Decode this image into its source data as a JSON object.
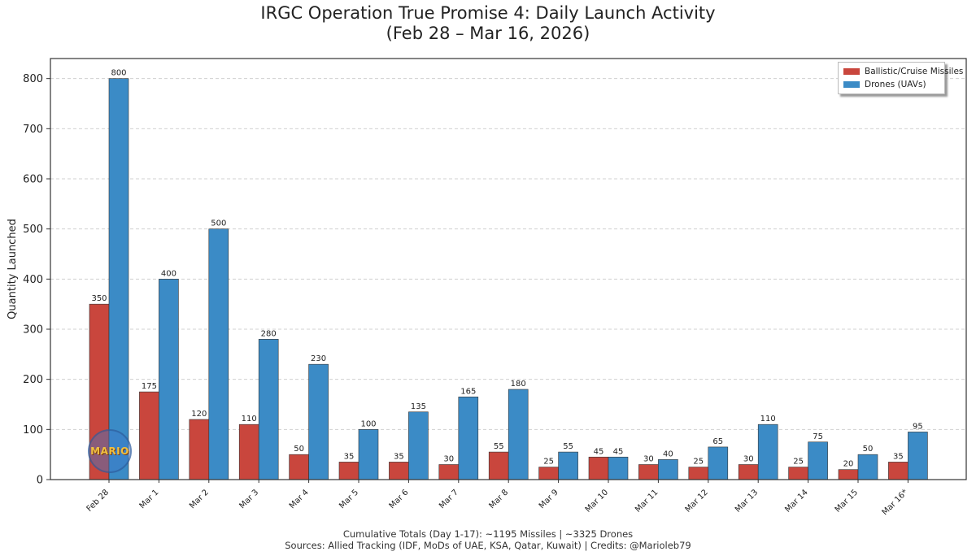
{
  "header": {
    "title_line1": "IRGC Operation True Promise 4: Daily Launch Activity",
    "title_line2": "(Feb 28 – Mar 16, 2026)"
  },
  "footer": {
    "line1": "Cumulative Totals (Day 1-17): ~1195 Missiles | ~3325 Drones",
    "line2": "Sources: Allied Tracking (IDF, MoDs of UAE, KSA, Qatar, Kuwait) | Credits: @Marioleb79"
  },
  "watermark": {
    "text": "MARIO"
  },
  "colors": {
    "missiles": "#c9463d",
    "drones": "#3b8bc6",
    "grid": "#d0d0d0",
    "axis": "#333333"
  },
  "chart_data": {
    "type": "bar",
    "title": "IRGC Operation True Promise 4: Daily Launch Activity (Feb 28 – Mar 16, 2026)",
    "xlabel": "",
    "ylabel": "Quantity Launched",
    "ylim": [
      0,
      840
    ],
    "yticks": [
      0,
      100,
      200,
      300,
      400,
      500,
      600,
      700,
      800
    ],
    "grid": "horizontal dashed",
    "legend_position": "top-right",
    "categories": [
      "Feb 28",
      "Mar 1",
      "Mar 2",
      "Mar 3",
      "Mar 4",
      "Mar 5",
      "Mar 6",
      "Mar 7",
      "Mar 8",
      "Mar 9",
      "Mar 10",
      "Mar 11",
      "Mar 12",
      "Mar 13",
      "Mar 14",
      "Mar 15",
      "Mar 16*"
    ],
    "series": [
      {
        "name": "Ballistic/Cruise Missiles",
        "color": "#c9463d",
        "values": [
          350,
          175,
          120,
          110,
          50,
          35,
          35,
          30,
          55,
          25,
          45,
          30,
          25,
          30,
          25,
          20,
          35
        ]
      },
      {
        "name": "Drones (UAVs)",
        "color": "#3b8bc6",
        "values": [
          800,
          400,
          500,
          280,
          230,
          100,
          135,
          165,
          180,
          55,
          45,
          40,
          65,
          110,
          75,
          50,
          95
        ]
      }
    ]
  }
}
